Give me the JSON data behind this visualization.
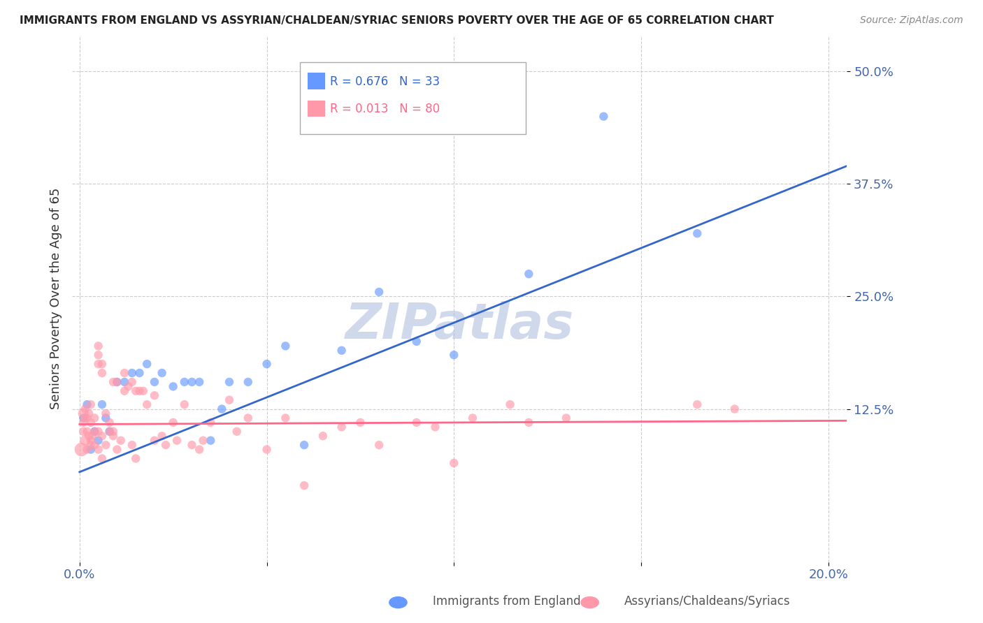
{
  "title": "IMMIGRANTS FROM ENGLAND VS ASSYRIAN/CHALDEAN/SYRIAC SENIORS POVERTY OVER THE AGE OF 65 CORRELATION CHART",
  "source": "Source: ZipAtlas.com",
  "ylabel": "Seniors Poverty Over the Age of 65",
  "ytick_labels": [
    "12.5%",
    "25.0%",
    "37.5%",
    "50.0%"
  ],
  "ytick_values": [
    0.125,
    0.25,
    0.375,
    0.5
  ],
  "ylim": [
    -0.045,
    0.54
  ],
  "xlim": [
    -0.002,
    0.205
  ],
  "blue_color": "#6699FF",
  "pink_color": "#FF99AA",
  "blue_line_color": "#3366CC",
  "pink_line_color": "#FF6688",
  "watermark": "ZIPatlas",
  "watermark_color": "#AABBDD",
  "background_color": "#FFFFFF",
  "grid_color": "#CCCCCC",
  "label_color": "#4466AA",
  "blue_scatter": [
    [
      0.001,
      0.115
    ],
    [
      0.002,
      0.13
    ],
    [
      0.003,
      0.08
    ],
    [
      0.004,
      0.1
    ],
    [
      0.005,
      0.09
    ],
    [
      0.006,
      0.13
    ],
    [
      0.007,
      0.115
    ],
    [
      0.008,
      0.1
    ],
    [
      0.01,
      0.155
    ],
    [
      0.012,
      0.155
    ],
    [
      0.014,
      0.165
    ],
    [
      0.016,
      0.165
    ],
    [
      0.018,
      0.175
    ],
    [
      0.02,
      0.155
    ],
    [
      0.022,
      0.165
    ],
    [
      0.025,
      0.15
    ],
    [
      0.028,
      0.155
    ],
    [
      0.03,
      0.155
    ],
    [
      0.032,
      0.155
    ],
    [
      0.035,
      0.09
    ],
    [
      0.038,
      0.125
    ],
    [
      0.04,
      0.155
    ],
    [
      0.045,
      0.155
    ],
    [
      0.05,
      0.175
    ],
    [
      0.055,
      0.195
    ],
    [
      0.06,
      0.085
    ],
    [
      0.07,
      0.19
    ],
    [
      0.08,
      0.255
    ],
    [
      0.09,
      0.2
    ],
    [
      0.1,
      0.185
    ],
    [
      0.12,
      0.275
    ],
    [
      0.14,
      0.45
    ],
    [
      0.165,
      0.32
    ]
  ],
  "blue_bubble_sizes": [
    80,
    80,
    80,
    80,
    80,
    80,
    80,
    80,
    80,
    80,
    80,
    80,
    80,
    80,
    80,
    80,
    80,
    80,
    80,
    80,
    80,
    80,
    80,
    80,
    80,
    80,
    80,
    80,
    80,
    80,
    80,
    80,
    80
  ],
  "pink_scatter": [
    [
      0.0005,
      0.08
    ],
    [
      0.001,
      0.12
    ],
    [
      0.001,
      0.1
    ],
    [
      0.001,
      0.11
    ],
    [
      0.0015,
      0.09
    ],
    [
      0.0015,
      0.115
    ],
    [
      0.0015,
      0.125
    ],
    [
      0.002,
      0.1
    ],
    [
      0.002,
      0.115
    ],
    [
      0.002,
      0.08
    ],
    [
      0.0025,
      0.095
    ],
    [
      0.0025,
      0.12
    ],
    [
      0.003,
      0.09
    ],
    [
      0.003,
      0.11
    ],
    [
      0.003,
      0.085
    ],
    [
      0.003,
      0.13
    ],
    [
      0.0035,
      0.095
    ],
    [
      0.004,
      0.115
    ],
    [
      0.004,
      0.1
    ],
    [
      0.004,
      0.085
    ],
    [
      0.005,
      0.08
    ],
    [
      0.005,
      0.1
    ],
    [
      0.005,
      0.195
    ],
    [
      0.005,
      0.185
    ],
    [
      0.005,
      0.175
    ],
    [
      0.006,
      0.095
    ],
    [
      0.006,
      0.07
    ],
    [
      0.006,
      0.165
    ],
    [
      0.006,
      0.175
    ],
    [
      0.007,
      0.12
    ],
    [
      0.007,
      0.085
    ],
    [
      0.008,
      0.11
    ],
    [
      0.008,
      0.1
    ],
    [
      0.009,
      0.155
    ],
    [
      0.009,
      0.1
    ],
    [
      0.009,
      0.095
    ],
    [
      0.01,
      0.155
    ],
    [
      0.01,
      0.08
    ],
    [
      0.011,
      0.09
    ],
    [
      0.012,
      0.165
    ],
    [
      0.012,
      0.145
    ],
    [
      0.013,
      0.15
    ],
    [
      0.014,
      0.155
    ],
    [
      0.014,
      0.085
    ],
    [
      0.015,
      0.145
    ],
    [
      0.015,
      0.07
    ],
    [
      0.016,
      0.145
    ],
    [
      0.017,
      0.145
    ],
    [
      0.018,
      0.13
    ],
    [
      0.02,
      0.14
    ],
    [
      0.02,
      0.09
    ],
    [
      0.022,
      0.095
    ],
    [
      0.023,
      0.085
    ],
    [
      0.025,
      0.11
    ],
    [
      0.026,
      0.09
    ],
    [
      0.028,
      0.13
    ],
    [
      0.03,
      0.085
    ],
    [
      0.032,
      0.08
    ],
    [
      0.033,
      0.09
    ],
    [
      0.035,
      0.11
    ],
    [
      0.04,
      0.135
    ],
    [
      0.042,
      0.1
    ],
    [
      0.045,
      0.115
    ],
    [
      0.05,
      0.08
    ],
    [
      0.055,
      0.115
    ],
    [
      0.06,
      0.04
    ],
    [
      0.065,
      0.095
    ],
    [
      0.07,
      0.105
    ],
    [
      0.075,
      0.11
    ],
    [
      0.08,
      0.085
    ],
    [
      0.09,
      0.11
    ],
    [
      0.095,
      0.105
    ],
    [
      0.1,
      0.065
    ],
    [
      0.105,
      0.115
    ],
    [
      0.115,
      0.13
    ],
    [
      0.12,
      0.11
    ],
    [
      0.13,
      0.115
    ],
    [
      0.165,
      0.13
    ],
    [
      0.175,
      0.125
    ]
  ],
  "pink_bubble_sizes": [
    200,
    120,
    80,
    80,
    120,
    80,
    80,
    80,
    80,
    80,
    80,
    80,
    80,
    80,
    80,
    80,
    80,
    80,
    80,
    80,
    80,
    80,
    80,
    80,
    80,
    80,
    80,
    80,
    80,
    80,
    80,
    80,
    80,
    80,
    80,
    80,
    80,
    80,
    80,
    80,
    80,
    80,
    80,
    80,
    80,
    80,
    80,
    80,
    80,
    80,
    80,
    80,
    80,
    80,
    80,
    80,
    80,
    80,
    80,
    80,
    80,
    80,
    80,
    80,
    80,
    80,
    80,
    80,
    80,
    80,
    80,
    80,
    80,
    80,
    80,
    80,
    80,
    80,
    80
  ]
}
